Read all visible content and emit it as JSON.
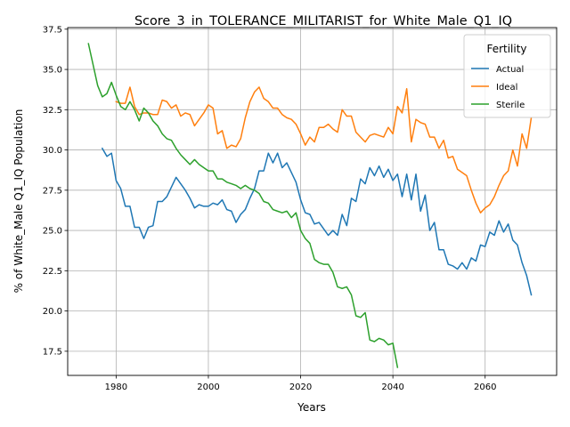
{
  "chart_data": {
    "type": "line",
    "title": "Score_3_in_TOLERANCE_MILITARIST_for_White_Male_Q1_IQ",
    "xlabel": "Years",
    "ylabel": "% of White_Male Q1_IQ Population",
    "xlim": [
      1969.5,
      2075.5
    ],
    "ylim": [
      16.0,
      37.6
    ],
    "xticks": [
      1980,
      2000,
      2020,
      2040,
      2060
    ],
    "yticks": [
      17.5,
      20.0,
      22.5,
      25.0,
      27.5,
      30.0,
      32.5,
      35.0,
      37.5
    ],
    "xtick_labels": [
      "1980",
      "2000",
      "2020",
      "2040",
      "2060"
    ],
    "ytick_labels": [
      "17.5",
      "20.0",
      "22.5",
      "25.0",
      "27.5",
      "30.0",
      "32.5",
      "35.0",
      "37.5"
    ],
    "grid": true,
    "legend": {
      "title": "Fertility",
      "position": "top-right"
    },
    "series": [
      {
        "name": "Actual",
        "color": "#1f77b4",
        "x": [
          1977,
          1978,
          1979,
          1980,
          1981,
          1982,
          1983,
          1984,
          1985,
          1986,
          1987,
          1988,
          1989,
          1990,
          1991,
          1992,
          1993,
          1994,
          1995,
          1996,
          1997,
          1998,
          1999,
          2000,
          2001,
          2002,
          2003,
          2004,
          2005,
          2006,
          2007,
          2008,
          2009,
          2010,
          2011,
          2012,
          2013,
          2014,
          2015,
          2016,
          2017,
          2018,
          2019,
          2020,
          2021,
          2022,
          2023,
          2024,
          2025,
          2026,
          2027,
          2028,
          2029,
          2030,
          2031,
          2032,
          2033,
          2034,
          2035,
          2036,
          2037,
          2038,
          2039,
          2040,
          2041,
          2042,
          2043,
          2044,
          2045,
          2046,
          2047,
          2048,
          2049,
          2050,
          2051,
          2052,
          2053,
          2054,
          2055,
          2056,
          2057,
          2058,
          2059,
          2060,
          2061,
          2062,
          2063,
          2064,
          2065,
          2066,
          2067,
          2068,
          2069,
          2070
        ],
        "values": [
          30.1,
          29.6,
          29.8,
          28.1,
          27.6,
          26.5,
          26.5,
          25.2,
          25.2,
          24.5,
          25.2,
          25.3,
          26.8,
          26.8,
          27.1,
          27.7,
          28.3,
          27.9,
          27.5,
          27.0,
          26.4,
          26.6,
          26.5,
          26.5,
          26.7,
          26.6,
          26.9,
          26.3,
          26.2,
          25.5,
          26.0,
          26.3,
          27.0,
          27.6,
          28.7,
          28.7,
          29.8,
          29.2,
          29.8,
          28.9,
          29.2,
          28.6,
          28.0,
          26.9,
          26.1,
          26.0,
          25.4,
          25.5,
          25.1,
          24.7,
          25.0,
          24.7,
          26.0,
          25.3,
          27.0,
          26.8,
          28.2,
          27.9,
          28.9,
          28.4,
          29.0,
          28.3,
          28.8,
          28.1,
          28.5,
          27.1,
          28.5,
          26.9,
          28.5,
          26.2,
          27.2,
          25.0,
          25.5,
          23.8,
          23.8,
          22.9,
          22.8,
          22.6,
          23.0,
          22.6,
          23.3,
          23.1,
          24.1,
          24.0,
          24.9,
          24.7,
          25.6,
          24.9,
          25.4,
          24.4,
          24.1,
          23.0,
          22.2,
          21.0
        ]
      },
      {
        "name": "Ideal",
        "color": "#ff7f0e",
        "x": [
          1980,
          1981,
          1982,
          1983,
          1984,
          1985,
          1986,
          1987,
          1988,
          1989,
          1990,
          1991,
          1992,
          1993,
          1994,
          1995,
          1996,
          1997,
          1998,
          1999,
          2000,
          2001,
          2002,
          2003,
          2004,
          2005,
          2006,
          2007,
          2008,
          2009,
          2010,
          2011,
          2012,
          2013,
          2014,
          2015,
          2016,
          2017,
          2018,
          2019,
          2020,
          2021,
          2022,
          2023,
          2024,
          2025,
          2026,
          2027,
          2028,
          2029,
          2030,
          2031,
          2032,
          2033,
          2034,
          2035,
          2036,
          2037,
          2038,
          2039,
          2040,
          2041,
          2042,
          2043,
          2044,
          2045,
          2046,
          2047,
          2048,
          2049,
          2050,
          2051,
          2052,
          2053,
          2054,
          2055,
          2056,
          2057,
          2058,
          2059,
          2060,
          2061,
          2062,
          2063,
          2064,
          2065,
          2066,
          2067,
          2068,
          2069,
          2070
        ],
        "values": [
          33.0,
          32.9,
          32.9,
          33.9,
          32.7,
          32.2,
          32.3,
          32.3,
          32.2,
          32.2,
          33.1,
          33.0,
          32.6,
          32.8,
          32.1,
          32.3,
          32.2,
          31.5,
          31.9,
          32.3,
          32.8,
          32.6,
          31.0,
          31.2,
          30.1,
          30.3,
          30.2,
          30.7,
          32.0,
          33.0,
          33.6,
          33.9,
          33.2,
          33.0,
          32.6,
          32.6,
          32.2,
          32.0,
          31.9,
          31.6,
          31.0,
          30.3,
          30.8,
          30.5,
          31.4,
          31.4,
          31.6,
          31.3,
          31.1,
          32.5,
          32.1,
          32.1,
          31.1,
          30.8,
          30.5,
          30.9,
          31.0,
          30.9,
          30.8,
          31.4,
          31.0,
          32.7,
          32.3,
          33.8,
          30.5,
          31.9,
          31.7,
          31.6,
          30.8,
          30.8,
          30.1,
          30.6,
          29.5,
          29.6,
          28.8,
          28.6,
          28.4,
          27.5,
          26.7,
          26.1,
          26.4,
          26.6,
          27.1,
          27.8,
          28.4,
          28.7,
          30.0,
          29.0,
          31.0,
          30.1,
          32.0
        ]
      },
      {
        "name": "Sterile",
        "color": "#2ca02c",
        "x": [
          1974,
          1975,
          1976,
          1977,
          1978,
          1979,
          1980,
          1981,
          1982,
          1983,
          1984,
          1985,
          1986,
          1987,
          1988,
          1989,
          1990,
          1991,
          1992,
          1993,
          1994,
          1995,
          1996,
          1997,
          1998,
          1999,
          2000,
          2001,
          2002,
          2003,
          2004,
          2005,
          2006,
          2007,
          2008,
          2009,
          2010,
          2011,
          2012,
          2013,
          2014,
          2015,
          2016,
          2017,
          2018,
          2019,
          2020,
          2021,
          2022,
          2023,
          2024,
          2025,
          2026,
          2027,
          2028,
          2029,
          2030,
          2031,
          2032,
          2033,
          2034,
          2035,
          2036,
          2037,
          2038,
          2039,
          2040,
          2041
        ],
        "values": [
          36.6,
          35.3,
          34.0,
          33.3,
          33.5,
          34.2,
          33.4,
          32.7,
          32.5,
          33.0,
          32.5,
          31.8,
          32.6,
          32.3,
          31.8,
          31.5,
          31.0,
          30.7,
          30.6,
          30.1,
          29.7,
          29.4,
          29.1,
          29.4,
          29.1,
          28.9,
          28.7,
          28.7,
          28.2,
          28.2,
          28.0,
          27.9,
          27.8,
          27.6,
          27.8,
          27.6,
          27.5,
          27.3,
          26.8,
          26.7,
          26.3,
          26.2,
          26.1,
          26.2,
          25.8,
          26.1,
          25.0,
          24.5,
          24.2,
          23.2,
          23.0,
          22.9,
          22.9,
          22.4,
          21.5,
          21.4,
          21.5,
          21.0,
          19.7,
          19.6,
          19.9,
          18.2,
          18.1,
          18.3,
          18.2,
          17.9,
          18.0,
          16.5
        ]
      }
    ]
  }
}
